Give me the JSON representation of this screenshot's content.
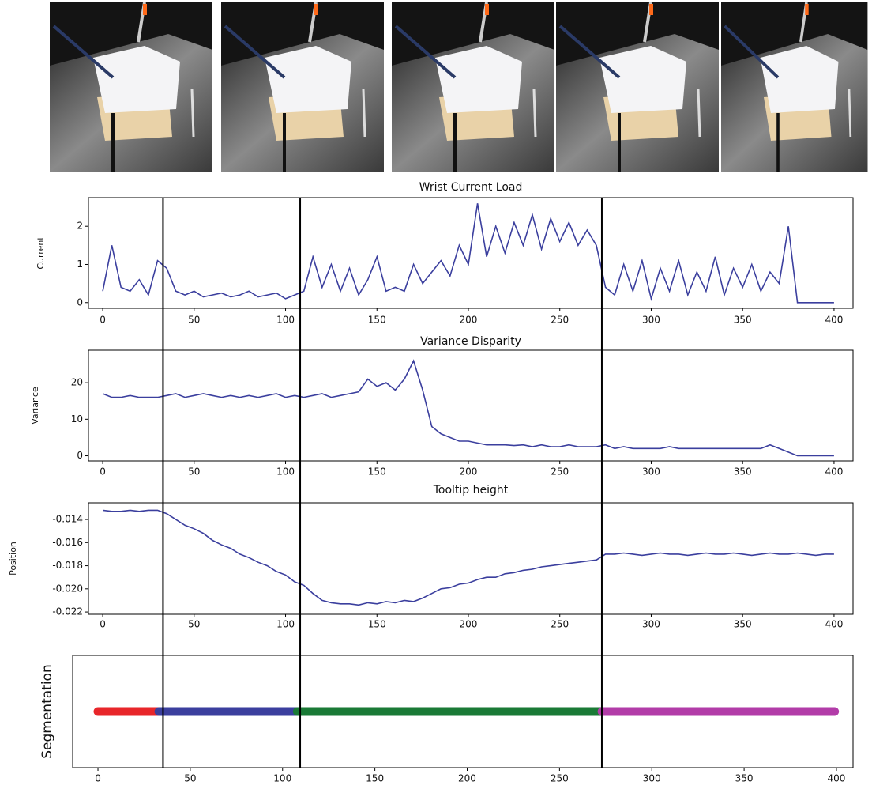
{
  "chart_data": [
    {
      "type": "line",
      "title": "Wrist Current Load",
      "ylabel": "Current",
      "color": "#3b3f9e",
      "x": [
        0,
        5,
        10,
        15,
        20,
        25,
        30,
        35,
        40,
        45,
        50,
        55,
        60,
        65,
        70,
        75,
        80,
        85,
        90,
        95,
        100,
        105,
        110,
        115,
        120,
        125,
        130,
        135,
        140,
        145,
        150,
        155,
        160,
        165,
        170,
        175,
        180,
        185,
        190,
        195,
        200,
        205,
        210,
        215,
        220,
        225,
        230,
        235,
        240,
        245,
        250,
        255,
        260,
        265,
        270,
        275,
        280,
        285,
        290,
        295,
        300,
        305,
        310,
        315,
        320,
        325,
        330,
        335,
        340,
        345,
        350,
        355,
        360,
        365,
        370,
        375,
        380,
        385,
        390,
        395,
        400
      ],
      "values": [
        0.3,
        1.5,
        0.4,
        0.3,
        0.6,
        0.2,
        1.1,
        0.9,
        0.3,
        0.2,
        0.3,
        0.15,
        0.2,
        0.25,
        0.15,
        0.2,
        0.3,
        0.15,
        0.2,
        0.25,
        0.1,
        0.2,
        0.3,
        1.2,
        0.4,
        1.0,
        0.3,
        0.9,
        0.2,
        0.6,
        1.2,
        0.3,
        0.4,
        0.3,
        1.0,
        0.5,
        0.8,
        1.1,
        0.7,
        1.5,
        1.0,
        2.6,
        1.2,
        2.0,
        1.3,
        2.1,
        1.5,
        2.3,
        1.4,
        2.2,
        1.6,
        2.1,
        1.5,
        1.9,
        1.5,
        0.4,
        0.2,
        1.0,
        0.3,
        1.1,
        0.1,
        0.9,
        0.3,
        1.1,
        0.2,
        0.8,
        0.3,
        1.2,
        0.2,
        0.9,
        0.4,
        1.0,
        0.3,
        0.8,
        0.5,
        2.0,
        0,
        0,
        0,
        0,
        0
      ],
      "xlim": [
        -7.8,
        410.4
      ],
      "xticks": [
        0,
        50,
        100,
        150,
        200,
        250,
        300,
        350,
        400
      ],
      "ylim": [
        -0.15,
        2.75
      ],
      "yticks": [
        0,
        1,
        2
      ]
    },
    {
      "type": "line",
      "title": "Variance Disparity",
      "ylabel": "Variance",
      "color": "#3b3f9e",
      "x": [
        0,
        5,
        10,
        15,
        20,
        25,
        30,
        35,
        40,
        45,
        50,
        55,
        60,
        65,
        70,
        75,
        80,
        85,
        90,
        95,
        100,
        105,
        110,
        115,
        120,
        125,
        130,
        135,
        140,
        145,
        150,
        155,
        160,
        165,
        170,
        175,
        180,
        185,
        190,
        195,
        200,
        205,
        210,
        215,
        220,
        225,
        230,
        235,
        240,
        245,
        250,
        255,
        260,
        265,
        270,
        275,
        280,
        285,
        290,
        295,
        300,
        305,
        310,
        315,
        320,
        325,
        330,
        335,
        340,
        345,
        350,
        355,
        360,
        365,
        370,
        375,
        380,
        385,
        390,
        395,
        400
      ],
      "values": [
        17,
        16,
        16,
        16.5,
        16,
        16,
        16,
        16.5,
        17,
        16,
        16.5,
        17,
        16.5,
        16,
        16.5,
        16,
        16.5,
        16,
        16.5,
        17,
        16,
        16.5,
        16,
        16.5,
        17,
        16,
        16.5,
        17,
        17.5,
        21,
        19,
        20,
        18,
        21,
        26,
        18,
        8,
        6,
        5,
        4,
        4,
        3.5,
        3,
        3,
        3,
        2.8,
        3,
        2.5,
        3,
        2.5,
        2.5,
        3,
        2.5,
        2.5,
        2.5,
        3,
        2,
        2.5,
        2,
        2,
        2,
        2,
        2.5,
        2,
        2,
        2,
        2,
        2,
        2,
        2,
        2,
        2,
        2,
        3,
        2,
        1,
        0,
        0,
        0,
        0,
        0
      ],
      "xlim": [
        -7.8,
        410.4
      ],
      "xticks": [
        0,
        50,
        100,
        150,
        200,
        250,
        300,
        350,
        400
      ],
      "ylim": [
        -1.4,
        28.9
      ],
      "yticks": [
        0,
        10,
        20
      ]
    },
    {
      "type": "line",
      "title": "Tooltip height",
      "ylabel": "Position",
      "color": "#3b3f9e",
      "x": [
        0,
        5,
        10,
        15,
        20,
        25,
        30,
        35,
        40,
        45,
        50,
        55,
        60,
        65,
        70,
        75,
        80,
        85,
        90,
        95,
        100,
        105,
        110,
        115,
        120,
        125,
        130,
        135,
        140,
        145,
        150,
        155,
        160,
        165,
        170,
        175,
        180,
        185,
        190,
        195,
        200,
        205,
        210,
        215,
        220,
        225,
        230,
        235,
        240,
        245,
        250,
        255,
        260,
        265,
        270,
        275,
        280,
        285,
        290,
        295,
        300,
        305,
        310,
        315,
        320,
        325,
        330,
        335,
        340,
        345,
        350,
        355,
        360,
        365,
        370,
        375,
        380,
        385,
        390,
        395,
        400
      ],
      "values": [
        -0.0132,
        -0.0133,
        -0.0133,
        -0.0132,
        -0.0133,
        -0.0132,
        -0.0132,
        -0.0135,
        -0.014,
        -0.0145,
        -0.0148,
        -0.0152,
        -0.0158,
        -0.0162,
        -0.0165,
        -0.017,
        -0.0173,
        -0.0177,
        -0.018,
        -0.0185,
        -0.0188,
        -0.0194,
        -0.0197,
        -0.0204,
        -0.021,
        -0.0212,
        -0.0213,
        -0.0213,
        -0.0214,
        -0.0212,
        -0.0213,
        -0.0211,
        -0.0212,
        -0.021,
        -0.0211,
        -0.0208,
        -0.0204,
        -0.02,
        -0.0199,
        -0.0196,
        -0.0195,
        -0.0192,
        -0.019,
        -0.019,
        -0.0187,
        -0.0186,
        -0.0184,
        -0.0183,
        -0.0181,
        -0.018,
        -0.0179,
        -0.0178,
        -0.0177,
        -0.0176,
        -0.0175,
        -0.017,
        -0.017,
        -0.0169,
        -0.017,
        -0.0171,
        -0.017,
        -0.0169,
        -0.017,
        -0.017,
        -0.0171,
        -0.017,
        -0.0169,
        -0.017,
        -0.017,
        -0.0169,
        -0.017,
        -0.0171,
        -0.017,
        -0.0169,
        -0.017,
        -0.017,
        -0.0169,
        -0.017,
        -0.0171,
        -0.017,
        -0.017
      ],
      "xlim": [
        -7.8,
        410.4
      ],
      "xticks": [
        0,
        50,
        100,
        150,
        200,
        250,
        300,
        350,
        400
      ],
      "ylim": [
        -0.0222,
        -0.01256
      ],
      "yticks": [
        -0.014,
        -0.016,
        -0.018,
        {
          "value": -0.02,
          "label": "-0.020"
        },
        {
          "value": -0.022,
          "label": "-0.022"
        }
      ]
    },
    {
      "type": "segments",
      "ylabel": "Segmentation",
      "segments": [
        {
          "start": 0,
          "end": 33,
          "color": "#e8262a"
        },
        {
          "start": 33,
          "end": 108,
          "color": "#3b3f9e"
        },
        {
          "start": 108,
          "end": 273,
          "color": "#1a7a36"
        },
        {
          "start": 273,
          "end": 399,
          "color": "#b23ca8"
        }
      ],
      "boundaries": [
        33,
        108,
        273
      ],
      "xlim": [
        -13.7,
        409
      ],
      "xticks": [
        0,
        50,
        100,
        150,
        200,
        250,
        300,
        350,
        400
      ]
    }
  ]
}
